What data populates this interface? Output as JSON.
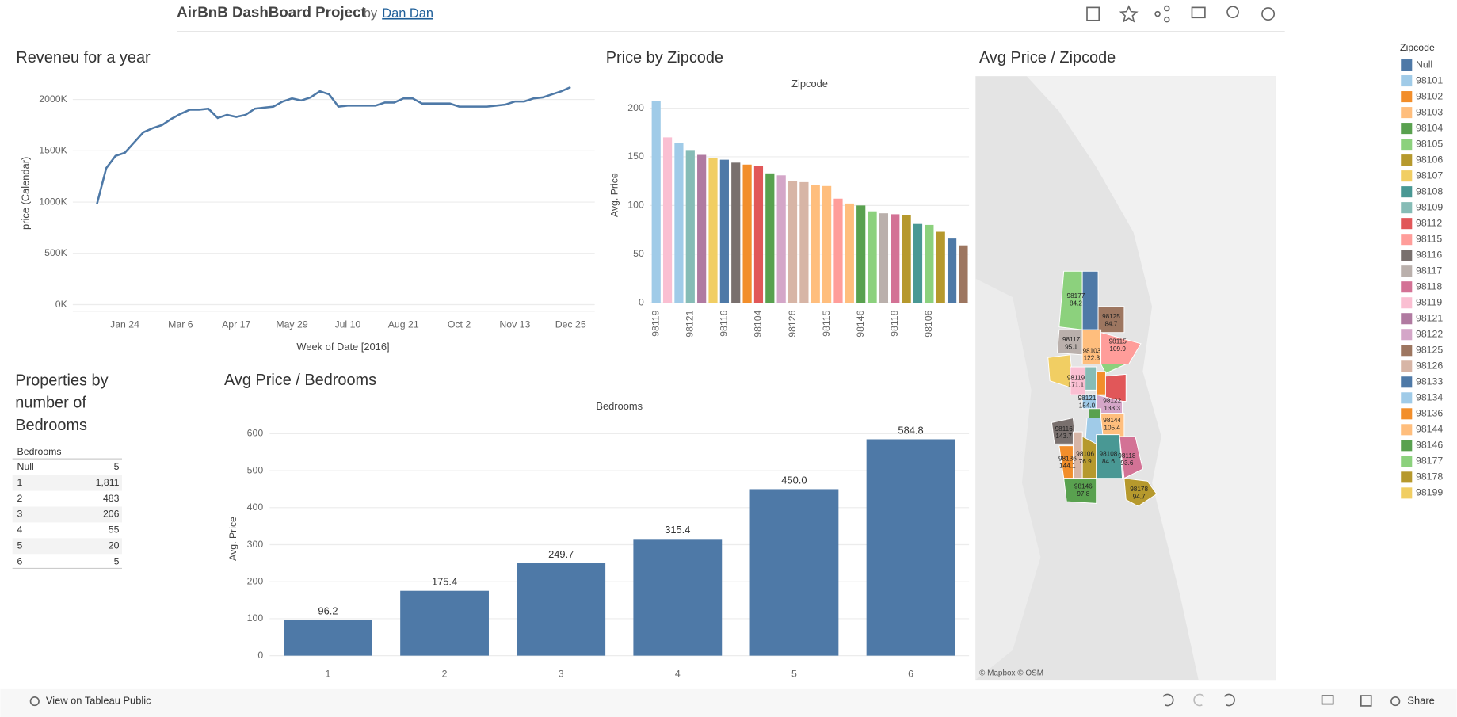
{
  "header": {
    "title": "AirBnB DashBoard Project",
    "by": "by",
    "author": "Dan Dan"
  },
  "revenue": {
    "type": "line",
    "title": "Reveneu for a year",
    "x_label": "Week of Date [2016]",
    "y_label": "price (Calendar)",
    "color": "#4e79a7",
    "categories": [
      null,
      null,
      null,
      "Jan 24",
      null,
      null,
      null,
      null,
      null,
      "Mar 6",
      null,
      null,
      null,
      null,
      null,
      "Apr 17",
      null,
      null,
      null,
      null,
      null,
      "May 29",
      null,
      null,
      null,
      null,
      null,
      "Jul 10",
      null,
      null,
      null,
      null,
      null,
      "Aug 21",
      null,
      null,
      null,
      null,
      null,
      "Oct 2",
      null,
      null,
      null,
      null,
      null,
      "Nov 13",
      null,
      null,
      null,
      null,
      null,
      "Dec 25"
    ],
    "values": [
      980000,
      1330000,
      1450000,
      1480000,
      1580000,
      1680000,
      1720000,
      1750000,
      1810000,
      1860000,
      1900000,
      1900000,
      1910000,
      1820000,
      1850000,
      1830000,
      1850000,
      1910000,
      1920000,
      1930000,
      1980000,
      2010000,
      1990000,
      2020000,
      2080000,
      2050000,
      1930000,
      1940000,
      1940000,
      1940000,
      1940000,
      1970000,
      1970000,
      2010000,
      2010000,
      1960000,
      1960000,
      1960000,
      1960000,
      1930000,
      1930000,
      1930000,
      1930000,
      1940000,
      1950000,
      1980000,
      1980000,
      2010000,
      2020000,
      2050000,
      2080000,
      2120000
    ],
    "ylim": [
      0,
      2200000
    ],
    "yticks": [
      {
        "value": 0,
        "label": "0K"
      },
      {
        "value": 500000,
        "label": "500K"
      },
      {
        "value": 1000000,
        "label": "1000K"
      },
      {
        "value": 1500000,
        "label": "1500K"
      },
      {
        "value": 2000000,
        "label": "2000K"
      }
    ],
    "grid": true
  },
  "zipcode_chart": {
    "type": "bar",
    "title": "Price by Zipcode",
    "header": "Zipcode",
    "y_label": "Avg. Price",
    "categories": [
      "98119",
      null,
      null,
      "98121",
      null,
      null,
      "98116",
      null,
      null,
      "98104",
      null,
      null,
      "98126",
      null,
      null,
      "98115",
      null,
      null,
      "98146",
      null,
      null,
      "98118",
      null,
      null,
      "98106",
      null,
      null,
      null
    ],
    "values": [
      207,
      170,
      164,
      157,
      152,
      149,
      147,
      144,
      142,
      141,
      133,
      131,
      125,
      124,
      121,
      120,
      107,
      102,
      100,
      94,
      92,
      91,
      90,
      81,
      80,
      73,
      66,
      59
    ],
    "colors": [
      "#a0cbe8",
      "#fabfd2",
      "#a0cbe8",
      "#86bcb6",
      "#b07aa1",
      "#f1ce63",
      "#4e79a7",
      "#79706e",
      "#f28e2b",
      "#e15759",
      "#59a14f",
      "#d4a6c8",
      "#d7b5a6",
      "#d7b5a6",
      "#ffbe7d",
      "#ffbe7d",
      "#ff9d9a",
      "#ffbe7d",
      "#59a14f",
      "#8cd17d",
      "#bab0ac",
      "#d37295",
      "#b6992d",
      "#499894",
      "#8cd17d",
      "#b6992d",
      "#4e79a7",
      "#9d7660"
    ],
    "ylim": [
      0,
      210
    ],
    "yticks": [
      0,
      50,
      100,
      150,
      200
    ],
    "grid": true
  },
  "map": {
    "title": "Avg Price / Zipcode",
    "labels": [
      {
        "zip": "98177",
        "value": "84.2"
      },
      {
        "zip": "98125",
        "value": "84.7"
      },
      {
        "zip": "98117",
        "value": "95.1"
      },
      {
        "zip": "98103",
        "value": "122.3"
      },
      {
        "zip": "98115",
        "value": "109.9"
      },
      {
        "zip": "98119",
        "value": "171.1"
      },
      {
        "zip": "98121",
        "value": "154.0"
      },
      {
        "zip": "98122",
        "value": "133.3"
      },
      {
        "zip": "98144",
        "value": "105.4"
      },
      {
        "zip": "98116",
        "value": "143.7"
      },
      {
        "zip": "98136",
        "value": "144.1"
      },
      {
        "zip": "98106",
        "value": "76.9"
      },
      {
        "zip": "98108",
        "value": "84.6"
      },
      {
        "zip": "98118",
        "value": "93.6"
      },
      {
        "zip": "98146",
        "value": "97.8"
      },
      {
        "zip": "98178",
        "value": "94.7"
      }
    ],
    "attribution": "© Mapbox © OSM"
  },
  "bedroom_table": {
    "title": "Properties by number of Bedrooms",
    "header": "Bedrooms",
    "rows": [
      [
        "Null",
        "5"
      ],
      [
        "1",
        "1,811"
      ],
      [
        "2",
        "483"
      ],
      [
        "3",
        "206"
      ],
      [
        "4",
        "55"
      ],
      [
        "5",
        "20"
      ],
      [
        "6",
        "5"
      ]
    ]
  },
  "bedroom_chart": {
    "type": "bar",
    "title": "Avg Price / Bedrooms",
    "header": "Bedrooms",
    "y_label": "Avg. Price",
    "color": "#4e79a7",
    "categories": [
      "1",
      "2",
      "3",
      "4",
      "5",
      "6"
    ],
    "values": [
      96.2,
      175.4,
      249.7,
      315.4,
      450.0,
      584.8
    ],
    "value_labels": [
      "96.2",
      "175.4",
      "249.7",
      "315.4",
      "450.0",
      "584.8"
    ],
    "ylim": [
      0,
      630
    ],
    "yticks": [
      0,
      100,
      200,
      300,
      400,
      500,
      600
    ],
    "grid": true
  },
  "legend": {
    "title": "Zipcode",
    "items": [
      {
        "name": "Null",
        "color": "#4e79a7"
      },
      {
        "name": "98101",
        "color": "#a0cbe8"
      },
      {
        "name": "98102",
        "color": "#f28e2b"
      },
      {
        "name": "98103",
        "color": "#ffbe7d"
      },
      {
        "name": "98104",
        "color": "#59a14f"
      },
      {
        "name": "98105",
        "color": "#8cd17d"
      },
      {
        "name": "98106",
        "color": "#b6992d"
      },
      {
        "name": "98107",
        "color": "#f1ce63"
      },
      {
        "name": "98108",
        "color": "#499894"
      },
      {
        "name": "98109",
        "color": "#86bcb6"
      },
      {
        "name": "98112",
        "color": "#e15759"
      },
      {
        "name": "98115",
        "color": "#ff9d9a"
      },
      {
        "name": "98116",
        "color": "#79706e"
      },
      {
        "name": "98117",
        "color": "#bab0ac"
      },
      {
        "name": "98118",
        "color": "#d37295"
      },
      {
        "name": "98119",
        "color": "#fabfd2"
      },
      {
        "name": "98121",
        "color": "#b07aa1"
      },
      {
        "name": "98122",
        "color": "#d4a6c8"
      },
      {
        "name": "98125",
        "color": "#9d7660"
      },
      {
        "name": "98126",
        "color": "#d7b5a6"
      },
      {
        "name": "98133",
        "color": "#4e79a7"
      },
      {
        "name": "98134",
        "color": "#a0cbe8"
      },
      {
        "name": "98136",
        "color": "#f28e2b"
      },
      {
        "name": "98144",
        "color": "#ffbe7d"
      },
      {
        "name": "98146",
        "color": "#59a14f"
      },
      {
        "name": "98177",
        "color": "#8cd17d"
      },
      {
        "name": "98178",
        "color": "#b6992d"
      },
      {
        "name": "98199",
        "color": "#f1ce63"
      }
    ]
  },
  "footer": {
    "link": "View on Tableau Public",
    "share": "Share"
  }
}
